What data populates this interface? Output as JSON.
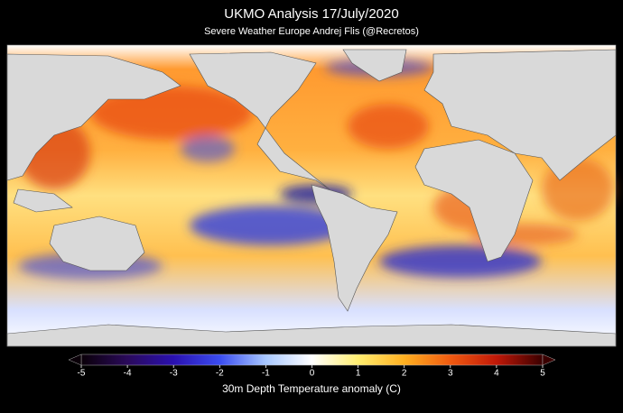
{
  "title": "UKMO Analysis 17/July/2020",
  "subtitle": "Severe Weather Europe   Andrej Flis (@Recretos)",
  "colorbar": {
    "label": "30m Depth Temperature anomaly (C)",
    "lim": [
      -5,
      5
    ],
    "ticks": [
      -5,
      -4,
      -3,
      -2,
      -1,
      0,
      1,
      2,
      3,
      4,
      5
    ],
    "colors": [
      "#0a0008",
      "#2a0a5a",
      "#2a10b0",
      "#3a4cf0",
      "#a8c8ff",
      "#ffffff",
      "#ffee70",
      "#ffb020",
      "#f05a10",
      "#c01808",
      "#3a0000"
    ]
  }
}
